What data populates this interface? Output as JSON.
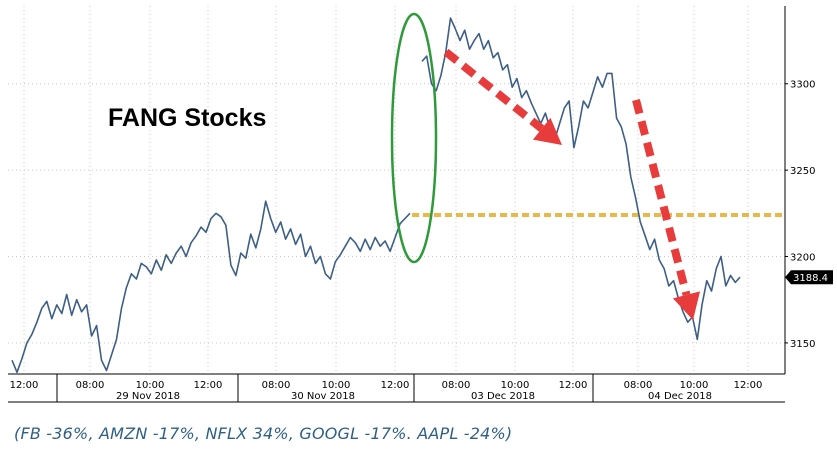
{
  "chart_data": {
    "type": "line",
    "title": "FANG Stocks",
    "y_ticks": [
      "3150",
      "3200",
      "3250",
      "3300"
    ],
    "ylim": [
      3132,
      3345
    ],
    "last_value_label": "3188.4",
    "reference_line": {
      "value": 3224,
      "style": "dashed",
      "color": "#e8b84a"
    },
    "x_time_labels": [
      "12:00",
      "08:00",
      "10:00",
      "12:00",
      "08:00",
      "10:00",
      "12:00",
      "08:00",
      "10:00",
      "12:00",
      "08:00",
      "10:00",
      "12:00"
    ],
    "x_date_labels": [
      "29 Nov 2018",
      "30 Nov 2018",
      "03 Dec 2018",
      "04 Dec 2018"
    ],
    "grid": true,
    "series": [
      {
        "color": "#3d5f86",
        "values": [
          3140,
          3133,
          3141,
          3150,
          3155,
          3162,
          3170,
          3174,
          3164,
          3172,
          3167,
          3178,
          3166,
          3175,
          3168,
          3172,
          3154,
          3160,
          3140,
          3134,
          3143,
          3152,
          3170,
          3182,
          3190,
          3187,
          3196,
          3194,
          3190,
          3198,
          3192,
          3201,
          3196,
          3202,
          3206,
          3200,
          3208,
          3212,
          3217,
          3214,
          3222,
          3225,
          3223,
          3218,
          3195,
          3189,
          3202,
          3199,
          3213,
          3205,
          3216,
          3232,
          3222,
          3214,
          3220,
          3210,
          3216,
          3207,
          3213,
          3200,
          3206,
          3196,
          3200,
          3190,
          3187,
          3197,
          3201,
          3206,
          3211,
          3208,
          3203,
          3210,
          3204,
          3211,
          3206,
          3209,
          3203,
          3211,
          3219,
          3222,
          3225,
          3313,
          3316,
          3300,
          3296,
          3305,
          3318,
          3338,
          3332,
          3325,
          3331,
          3320,
          3325,
          3329,
          3320,
          3325,
          3315,
          3318,
          3308,
          3311,
          3298,
          3303,
          3292,
          3296,
          3289,
          3283,
          3277,
          3283,
          3274,
          3268,
          3277,
          3286,
          3290,
          3263,
          3275,
          3290,
          3286,
          3295,
          3304,
          3298,
          3306,
          3306,
          3280,
          3275,
          3265,
          3246,
          3234,
          3220,
          3212,
          3204,
          3210,
          3198,
          3193,
          3183,
          3186,
          3176,
          3168,
          3162,
          3165,
          3152,
          3172,
          3186,
          3180,
          3193,
          3200,
          3183,
          3189,
          3185,
          3188
        ]
      }
    ],
    "annotations": [
      {
        "type": "ellipse",
        "color": "#2f9a3a"
      },
      {
        "type": "arrow",
        "color": "#e83b3b"
      },
      {
        "type": "arrow",
        "color": "#e83b3b"
      }
    ]
  },
  "caption": "(FB -36%, AMZN -17%, NFLX 34%, GOOGL -17%. AAPL -24%)"
}
